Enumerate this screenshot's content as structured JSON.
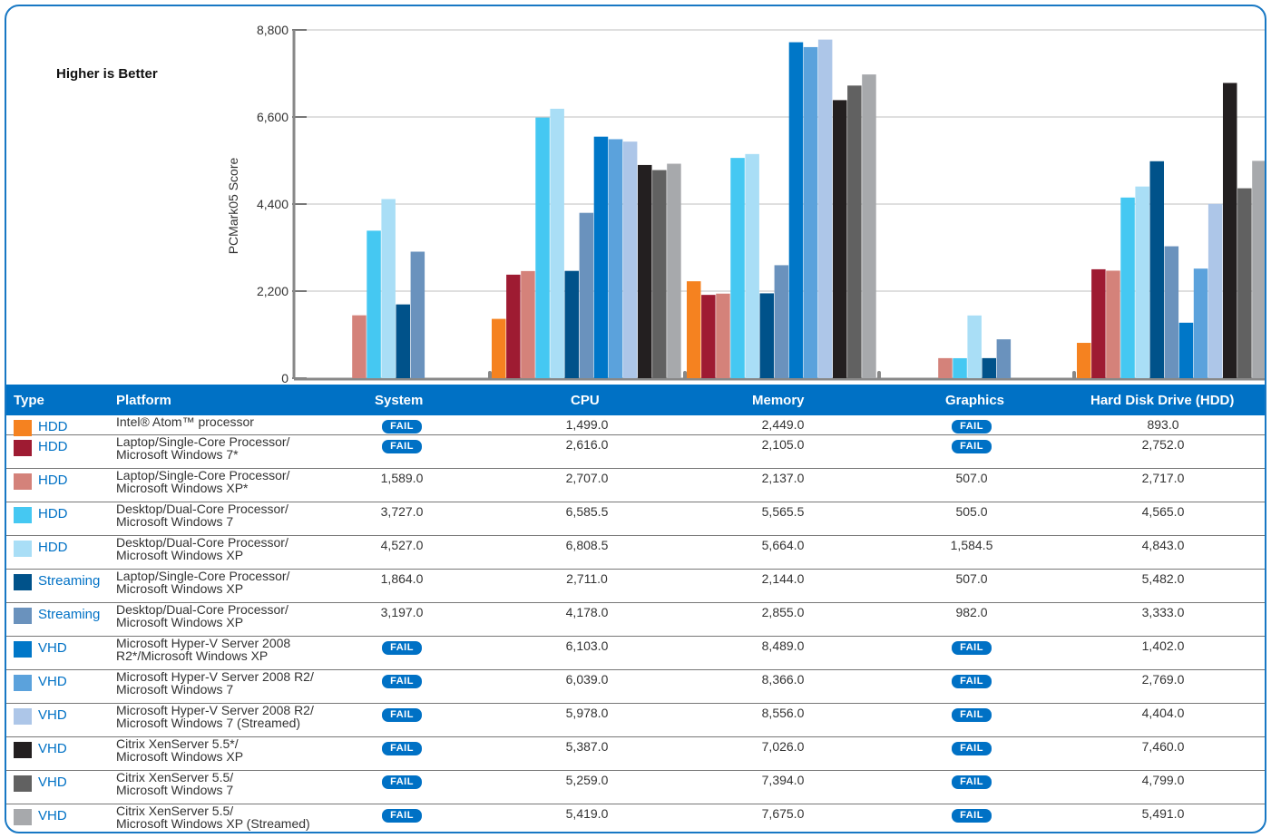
{
  "annotation": "Higher is Better",
  "table_headers": {
    "type": "Type",
    "platform": "Platform",
    "system": "System",
    "cpu": "CPU",
    "memory": "Memory",
    "graphics": "Graphics",
    "hdd": "Hard Disk Drive (HDD)"
  },
  "fail_label": "FAIL",
  "rows": [
    {
      "color": "#f58220",
      "type": "HDD",
      "platform": [
        "Intel® Atom™ processor"
      ],
      "system": "FAIL",
      "cpu": "1,499.0",
      "memory": "2,449.0",
      "graphics": "FAIL",
      "hdd": "893.0"
    },
    {
      "color": "#9e1b32",
      "type": "HDD",
      "platform": [
        "Laptop/Single-Core Processor/",
        "Microsoft Windows 7*"
      ],
      "system": "FAIL",
      "cpu": "2,616.0",
      "memory": "2,105.0",
      "graphics": "FAIL",
      "hdd": "2,752.0"
    },
    {
      "color": "#d4827a",
      "type": "HDD",
      "platform": [
        "Laptop/Single-Core Processor/",
        "Microsoft Windows XP*"
      ],
      "system": "1,589.0",
      "cpu": "2,707.0",
      "memory": "2,137.0",
      "graphics": "507.0",
      "hdd": "2,717.0"
    },
    {
      "color": "#45c8f2",
      "type": "HDD",
      "platform": [
        "Desktop/Dual-Core Processor/",
        "Microsoft Windows 7"
      ],
      "system": "3,727.0",
      "cpu": "6,585.5",
      "memory": "5,565.5",
      "graphics": "505.0",
      "hdd": "4,565.0"
    },
    {
      "color": "#a9def6",
      "type": "HDD",
      "platform": [
        "Desktop/Dual-Core Processor/",
        "Microsoft Windows XP"
      ],
      "system": "4,527.0",
      "cpu": "6,808.5",
      "memory": "5,664.0",
      "graphics": "1,584.5",
      "hdd": "4,843.0"
    },
    {
      "color": "#00528a",
      "type": "Streaming",
      "platform": [
        "Laptop/Single-Core Processor/",
        "Microsoft Windows XP"
      ],
      "system": "1,864.0",
      "cpu": "2,711.0",
      "memory": "2,144.0",
      "graphics": "507.0",
      "hdd": "5,482.0"
    },
    {
      "color": "#6a92bd",
      "type": "Streaming",
      "platform": [
        "Desktop/Dual-Core Processor/",
        "Microsoft Windows XP"
      ],
      "system": "3,197.0",
      "cpu": "4,178.0",
      "memory": "2,855.0",
      "graphics": "982.0",
      "hdd": "3,333.0"
    },
    {
      "color": "#0077c8",
      "type": "VHD",
      "platform": [
        "Microsoft Hyper-V Server 2008",
        "R2*/Microsoft Windows XP"
      ],
      "system": "FAIL",
      "cpu": "6,103.0",
      "memory": "8,489.0",
      "graphics": "FAIL",
      "hdd": "1,402.0"
    },
    {
      "color": "#5ba2dc",
      "type": "VHD",
      "platform": [
        "Microsoft Hyper-V Server 2008 R2/",
        "Microsoft Windows 7"
      ],
      "system": "FAIL",
      "cpu": "6,039.0",
      "memory": "8,366.0",
      "graphics": "FAIL",
      "hdd": "2,769.0"
    },
    {
      "color": "#adc6e8",
      "type": "VHD",
      "platform": [
        "Microsoft Hyper-V Server 2008 R2/",
        "Microsoft Windows 7 (Streamed)"
      ],
      "system": "FAIL",
      "cpu": "5,978.0",
      "memory": "8,556.0",
      "graphics": "FAIL",
      "hdd": "4,404.0"
    },
    {
      "color": "#231f20",
      "type": "VHD",
      "platform": [
        "Citrix XenServer 5.5*/",
        "Microsoft Windows XP"
      ],
      "system": "FAIL",
      "cpu": "5,387.0",
      "memory": "7,026.0",
      "graphics": "FAIL",
      "hdd": "7,460.0"
    },
    {
      "color": "#616161",
      "type": "VHD",
      "platform": [
        "Citrix XenServer 5.5/",
        "Microsoft Windows 7"
      ],
      "system": "FAIL",
      "cpu": "5,259.0",
      "memory": "7,394.0",
      "graphics": "FAIL",
      "hdd": "4,799.0"
    },
    {
      "color": "#a7a9ac",
      "type": "VHD",
      "platform": [
        "Citrix XenServer 5.5/",
        "Microsoft Windows XP (Streamed)"
      ],
      "system": "FAIL",
      "cpu": "5,419.0",
      "memory": "7,675.0",
      "graphics": "FAIL",
      "hdd": "5,491.0"
    }
  ],
  "chart_data": {
    "type": "bar",
    "ylabel": "PCMark05 Score",
    "ylim": [
      0,
      8800
    ],
    "yticks": [
      "0",
      "2,200",
      "4,400",
      "6,600",
      "8,800"
    ],
    "ytick_values": [
      0,
      2200,
      4400,
      6600,
      8800
    ],
    "grid": true,
    "categories": [
      "System",
      "CPU",
      "Memory",
      "Graphics",
      "Hard Disk Drive (HDD)"
    ],
    "series_colors": [
      "#f58220",
      "#9e1b32",
      "#d4827a",
      "#45c8f2",
      "#a9def6",
      "#00528a",
      "#6a92bd",
      "#0077c8",
      "#5ba2dc",
      "#adc6e8",
      "#231f20",
      "#616161",
      "#a7a9ac"
    ],
    "series": [
      {
        "values": [
          null,
          1499.0,
          2449.0,
          null,
          893.0
        ]
      },
      {
        "values": [
          null,
          2616.0,
          2105.0,
          null,
          2752.0
        ]
      },
      {
        "values": [
          1589.0,
          2707.0,
          2137.0,
          507.0,
          2717.0
        ]
      },
      {
        "values": [
          3727.0,
          6585.5,
          5565.5,
          505.0,
          4565.0
        ]
      },
      {
        "values": [
          4527.0,
          6808.5,
          5664.0,
          1584.5,
          4843.0
        ]
      },
      {
        "values": [
          1864.0,
          2711.0,
          2144.0,
          507.0,
          5482.0
        ]
      },
      {
        "values": [
          3197.0,
          4178.0,
          2855.0,
          982.0,
          3333.0
        ]
      },
      {
        "values": [
          null,
          6103.0,
          8489.0,
          null,
          1402.0
        ]
      },
      {
        "values": [
          null,
          6039.0,
          8366.0,
          null,
          2769.0
        ]
      },
      {
        "values": [
          null,
          5978.0,
          8556.0,
          null,
          4404.0
        ]
      },
      {
        "values": [
          null,
          5387.0,
          7026.0,
          null,
          7460.0
        ]
      },
      {
        "values": [
          null,
          5259.0,
          7394.0,
          null,
          4799.0
        ]
      },
      {
        "values": [
          null,
          5419.0,
          7675.0,
          null,
          5491.0
        ]
      }
    ]
  }
}
